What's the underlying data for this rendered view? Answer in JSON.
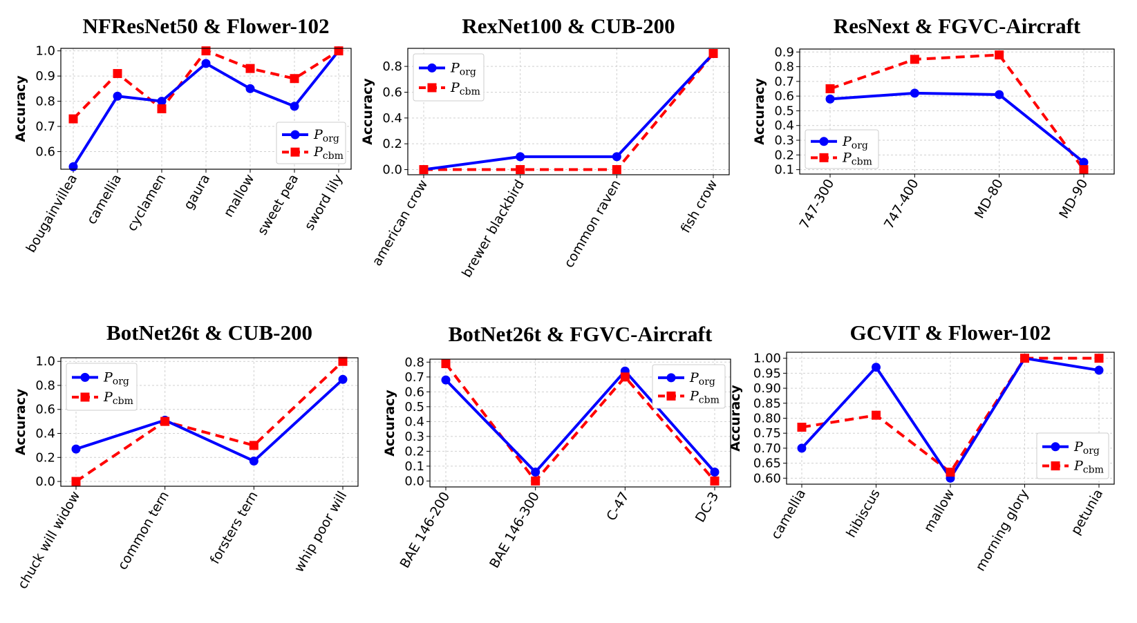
{
  "legend": {
    "org_main": "P",
    "org_sub": "org",
    "cbm_main": "P",
    "cbm_sub": "cbm"
  },
  "colors": {
    "org": "#0000ff",
    "cbm": "#ff0000"
  },
  "chart_data": [
    {
      "type": "line",
      "title": "NFResNet50 & Flower-102",
      "ylabel": "Accuracy",
      "categories": [
        "bougainvillea",
        "camellia",
        "cyclamen",
        "gaura",
        "mallow",
        "sweet pea",
        "sword lily"
      ],
      "ylim": [
        0.53,
        1.01
      ],
      "yticks": [
        0.6,
        0.7,
        0.8,
        0.9,
        1.0
      ],
      "ytick_labels": [
        "0.6",
        "0.7",
        "0.8",
        "0.9",
        "1.0"
      ],
      "legend_loc": "lower right",
      "series": [
        {
          "name": "P_org",
          "values": [
            0.54,
            0.82,
            0.8,
            0.95,
            0.85,
            0.78,
            1.0
          ]
        },
        {
          "name": "P_cbm",
          "values": [
            0.73,
            0.91,
            0.77,
            1.0,
            0.93,
            0.89,
            1.0
          ]
        }
      ]
    },
    {
      "type": "line",
      "title": "RexNet100 & CUB-200",
      "ylabel": "Accuracy",
      "categories": [
        "american crow",
        "brewer blackbird",
        "common raven",
        "fish crow"
      ],
      "ylim": [
        -0.04,
        0.94
      ],
      "yticks": [
        0.0,
        0.2,
        0.4,
        0.6,
        0.8
      ],
      "ytick_labels": [
        "0.0",
        "0.2",
        "0.4",
        "0.6",
        "0.8"
      ],
      "legend_loc": "upper left",
      "series": [
        {
          "name": "P_org",
          "values": [
            0.0,
            0.1,
            0.1,
            0.9
          ]
        },
        {
          "name": "P_cbm",
          "values": [
            0.0,
            0.0,
            0.0,
            0.9
          ]
        }
      ]
    },
    {
      "type": "line",
      "title": "ResNext & FGVC-Aircraft",
      "ylabel": "Accuracy",
      "categories": [
        "747-300",
        "747-400",
        "MD-80",
        "MD-90"
      ],
      "ylim": [
        0.07,
        0.92
      ],
      "yticks": [
        0.1,
        0.2,
        0.3,
        0.4,
        0.5,
        0.6,
        0.7,
        0.8,
        0.9
      ],
      "ytick_labels": [
        "0.1",
        "0.2",
        "0.3",
        "0.4",
        "0.5",
        "0.6",
        "0.7",
        "0.8",
        "0.9"
      ],
      "legend_loc": "lower left",
      "series": [
        {
          "name": "P_org",
          "values": [
            0.58,
            0.62,
            0.61,
            0.15
          ]
        },
        {
          "name": "P_cbm",
          "values": [
            0.65,
            0.85,
            0.88,
            0.1
          ]
        }
      ]
    },
    {
      "type": "line",
      "title": "BotNet26t & CUB-200",
      "ylabel": "Accuracy",
      "categories": [
        "chuck will widow",
        "common tern",
        "forsters tern",
        "whip poor will"
      ],
      "ylim": [
        -0.04,
        1.03
      ],
      "yticks": [
        0.0,
        0.2,
        0.4,
        0.6,
        0.8,
        1.0
      ],
      "ytick_labels": [
        "0.0",
        "0.2",
        "0.4",
        "0.6",
        "0.8",
        "1.0"
      ],
      "legend_loc": "upper left",
      "series": [
        {
          "name": "P_org",
          "values": [
            0.27,
            0.51,
            0.17,
            0.85
          ]
        },
        {
          "name": "P_cbm",
          "values": [
            0.0,
            0.5,
            0.3,
            1.0
          ]
        }
      ]
    },
    {
      "type": "line",
      "title": "BotNet26t & FGVC-Aircraft",
      "ylabel": "Accuracy",
      "categories": [
        "BAE 146-200",
        "BAE 146-300",
        "C-47",
        "DC-3"
      ],
      "ylim": [
        -0.04,
        0.82
      ],
      "yticks": [
        0.0,
        0.1,
        0.2,
        0.3,
        0.4,
        0.5,
        0.6,
        0.7,
        0.8
      ],
      "ytick_labels": [
        "0.0",
        "0.1",
        "0.2",
        "0.3",
        "0.4",
        "0.5",
        "0.6",
        "0.7",
        "0.8"
      ],
      "legend_loc": "upper right",
      "series": [
        {
          "name": "P_org",
          "values": [
            0.68,
            0.06,
            0.74,
            0.06
          ]
        },
        {
          "name": "P_cbm",
          "values": [
            0.79,
            0.0,
            0.7,
            0.0
          ]
        }
      ]
    },
    {
      "type": "line",
      "title": "GCVIT & Flower-102",
      "ylabel": "Accuracy",
      "categories": [
        "camellia",
        "hibiscus",
        "mallow",
        "morning glory",
        "petunia"
      ],
      "ylim": [
        0.58,
        1.02
      ],
      "yticks": [
        0.6,
        0.65,
        0.7,
        0.75,
        0.8,
        0.85,
        0.9,
        0.95,
        1.0
      ],
      "ytick_labels": [
        "0.60",
        "0.65",
        "0.70",
        "0.75",
        "0.80",
        "0.85",
        "0.90",
        "0.95",
        "1.00"
      ],
      "legend_loc": "lower right",
      "series": [
        {
          "name": "P_org",
          "values": [
            0.7,
            0.97,
            0.6,
            1.0,
            0.96
          ]
        },
        {
          "name": "P_cbm",
          "values": [
            0.77,
            0.81,
            0.62,
            1.0,
            1.0
          ]
        }
      ]
    }
  ]
}
